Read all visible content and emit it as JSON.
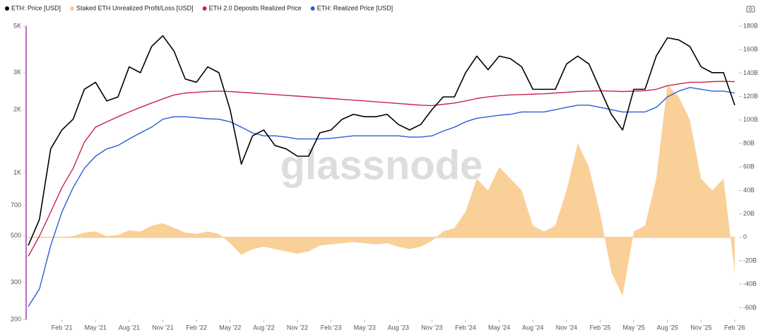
{
  "chart_data": {
    "type": "line",
    "watermark": "glassnode",
    "x": [
      "2020-11",
      "2020-12",
      "2021-01",
      "2021-02",
      "2021-03",
      "2021-04",
      "2021-05",
      "2021-06",
      "2021-07",
      "2021-08",
      "2021-09",
      "2021-10",
      "2021-11",
      "2021-12",
      "2022-01",
      "2022-02",
      "2022-03",
      "2022-04",
      "2022-05",
      "2022-06",
      "2022-07",
      "2022-08",
      "2022-09",
      "2022-10",
      "2022-11",
      "2022-12",
      "2023-01",
      "2023-02",
      "2023-03",
      "2023-04",
      "2023-05",
      "2023-06",
      "2023-07",
      "2023-08",
      "2023-09",
      "2023-10",
      "2023-11",
      "2023-12",
      "2024-01",
      "2024-02",
      "2024-03",
      "2024-04",
      "2024-05",
      "2024-06",
      "2024-07",
      "2024-08",
      "2024-09",
      "2024-10",
      "2024-11",
      "2024-12",
      "2025-01",
      "2025-02",
      "2025-03",
      "2025-04",
      "2025-05",
      "2025-06",
      "2025-07",
      "2025-08",
      "2025-09",
      "2025-10",
      "2025-11",
      "2025-12",
      "2026-01",
      "2026-02"
    ],
    "xlim": [
      "2020-11",
      "2026-02"
    ],
    "xticks": [
      {
        "value": "2021-02",
        "label": "Feb '21"
      },
      {
        "value": "2021-05",
        "label": "May '21"
      },
      {
        "value": "2021-08",
        "label": "Aug '21"
      },
      {
        "value": "2021-11",
        "label": "Nov '21"
      },
      {
        "value": "2022-02",
        "label": "Feb '22"
      },
      {
        "value": "2022-05",
        "label": "May '22"
      },
      {
        "value": "2022-08",
        "label": "Aug '22"
      },
      {
        "value": "2022-11",
        "label": "Nov '22"
      },
      {
        "value": "2023-02",
        "label": "Feb '23"
      },
      {
        "value": "2023-05",
        "label": "May '23"
      },
      {
        "value": "2023-08",
        "label": "Aug '23"
      },
      {
        "value": "2023-11",
        "label": "Nov '23"
      },
      {
        "value": "2024-02",
        "label": "Feb '24"
      },
      {
        "value": "2024-05",
        "label": "May '24"
      },
      {
        "value": "2024-08",
        "label": "Aug '24"
      },
      {
        "value": "2024-11",
        "label": "Nov '24"
      },
      {
        "value": "2025-02",
        "label": "Feb '25"
      },
      {
        "value": "2025-05",
        "label": "May '25"
      },
      {
        "value": "2025-08",
        "label": "Aug '25"
      },
      {
        "value": "2025-11",
        "label": "Nov '25"
      },
      {
        "value": "2026-02",
        "label": "Feb '26"
      }
    ],
    "ylim": [
      200,
      5000
    ],
    "log_scale": true,
    "yticks": [
      {
        "value": 5000,
        "label": "5K"
      },
      {
        "value": 3000,
        "label": "3K"
      },
      {
        "value": 2000,
        "label": "2K"
      },
      {
        "value": 1000,
        "label": "1K"
      },
      700,
      500,
      300,
      200
    ],
    "y2lim": [
      -70,
      180
    ],
    "y2ticks": [
      {
        "value": 180,
        "label": "180B"
      },
      {
        "value": 160,
        "label": "160B"
      },
      {
        "value": 140,
        "label": "140B"
      },
      {
        "value": 120,
        "label": "120B"
      },
      {
        "value": 100,
        "label": "100B"
      },
      {
        "value": 80,
        "label": "80B"
      },
      {
        "value": 60,
        "label": "60B"
      },
      {
        "value": 40,
        "label": "40B"
      },
      {
        "value": 20,
        "label": "20B"
      },
      0,
      {
        "value": -20,
        "label": "-20B"
      },
      {
        "value": -40,
        "label": "-40B"
      },
      {
        "value": -60,
        "label": "-60B"
      }
    ],
    "series": [
      {
        "name": "ETH: Price [USD]",
        "color": "#000000",
        "kind": "line",
        "values": [
          450,
          600,
          1300,
          1600,
          1800,
          2500,
          2700,
          2200,
          2300,
          3200,
          3000,
          4000,
          4500,
          3800,
          2800,
          2700,
          3200,
          3000,
          2000,
          1100,
          1500,
          1600,
          1350,
          1300,
          1200,
          1200,
          1550,
          1600,
          1800,
          1900,
          1850,
          1850,
          1900,
          1700,
          1600,
          1700,
          2000,
          2300,
          2300,
          3000,
          3600,
          3100,
          3600,
          3500,
          3200,
          2500,
          2500,
          2500,
          3300,
          3600,
          3300,
          2500,
          1900,
          1600,
          2500,
          2500,
          3600,
          4400,
          4300,
          4000,
          3200,
          3000,
          3000,
          2100
        ]
      },
      {
        "name": "Staked ETH Unrealized Profit/Loss [USD]",
        "color": "#f9cb8e",
        "kind": "area",
        "axis": "y2",
        "values": [
          0,
          0,
          0,
          0.5,
          1,
          4,
          5,
          1,
          2,
          6,
          5,
          10,
          12,
          8,
          4,
          3,
          5,
          3,
          -5,
          -15,
          -10,
          -8,
          -10,
          -12,
          -14,
          -12,
          -7,
          -6,
          -5,
          -4,
          -5,
          -6,
          -5,
          -8,
          -10,
          -8,
          -3,
          5,
          8,
          22,
          50,
          40,
          60,
          50,
          40,
          10,
          5,
          10,
          40,
          80,
          60,
          20,
          -30,
          -50,
          5,
          10,
          50,
          130,
          120,
          100,
          50,
          40,
          50,
          -30
        ]
      },
      {
        "name": "ETH 2.0 Deposits Realized Price",
        "color": "#c8264a",
        "kind": "line",
        "values": [
          400,
          500,
          650,
          850,
          1050,
          1400,
          1650,
          1750,
          1850,
          1950,
          2050,
          2150,
          2250,
          2350,
          2400,
          2420,
          2440,
          2450,
          2440,
          2420,
          2400,
          2380,
          2360,
          2340,
          2320,
          2300,
          2280,
          2260,
          2240,
          2220,
          2200,
          2180,
          2160,
          2140,
          2120,
          2100,
          2090,
          2120,
          2150,
          2200,
          2260,
          2300,
          2330,
          2350,
          2360,
          2370,
          2380,
          2400,
          2420,
          2440,
          2450,
          2460,
          2450,
          2440,
          2450,
          2460,
          2500,
          2600,
          2650,
          2700,
          2700,
          2720,
          2730,
          2720
        ]
      },
      {
        "name": "ETH: Realized Price [USD]",
        "color": "#2b5cd6",
        "kind": "line",
        "values": [
          230,
          280,
          450,
          650,
          850,
          1050,
          1200,
          1300,
          1350,
          1450,
          1550,
          1650,
          1800,
          1850,
          1850,
          1830,
          1810,
          1800,
          1750,
          1650,
          1550,
          1500,
          1500,
          1480,
          1450,
          1450,
          1450,
          1460,
          1480,
          1500,
          1500,
          1500,
          1500,
          1500,
          1480,
          1480,
          1500,
          1580,
          1650,
          1750,
          1820,
          1850,
          1880,
          1900,
          1950,
          1950,
          1950,
          2000,
          2050,
          2100,
          2100,
          2050,
          2000,
          1950,
          1950,
          1950,
          2050,
          2300,
          2450,
          2550,
          2500,
          2450,
          2450,
          2400
        ]
      }
    ]
  }
}
